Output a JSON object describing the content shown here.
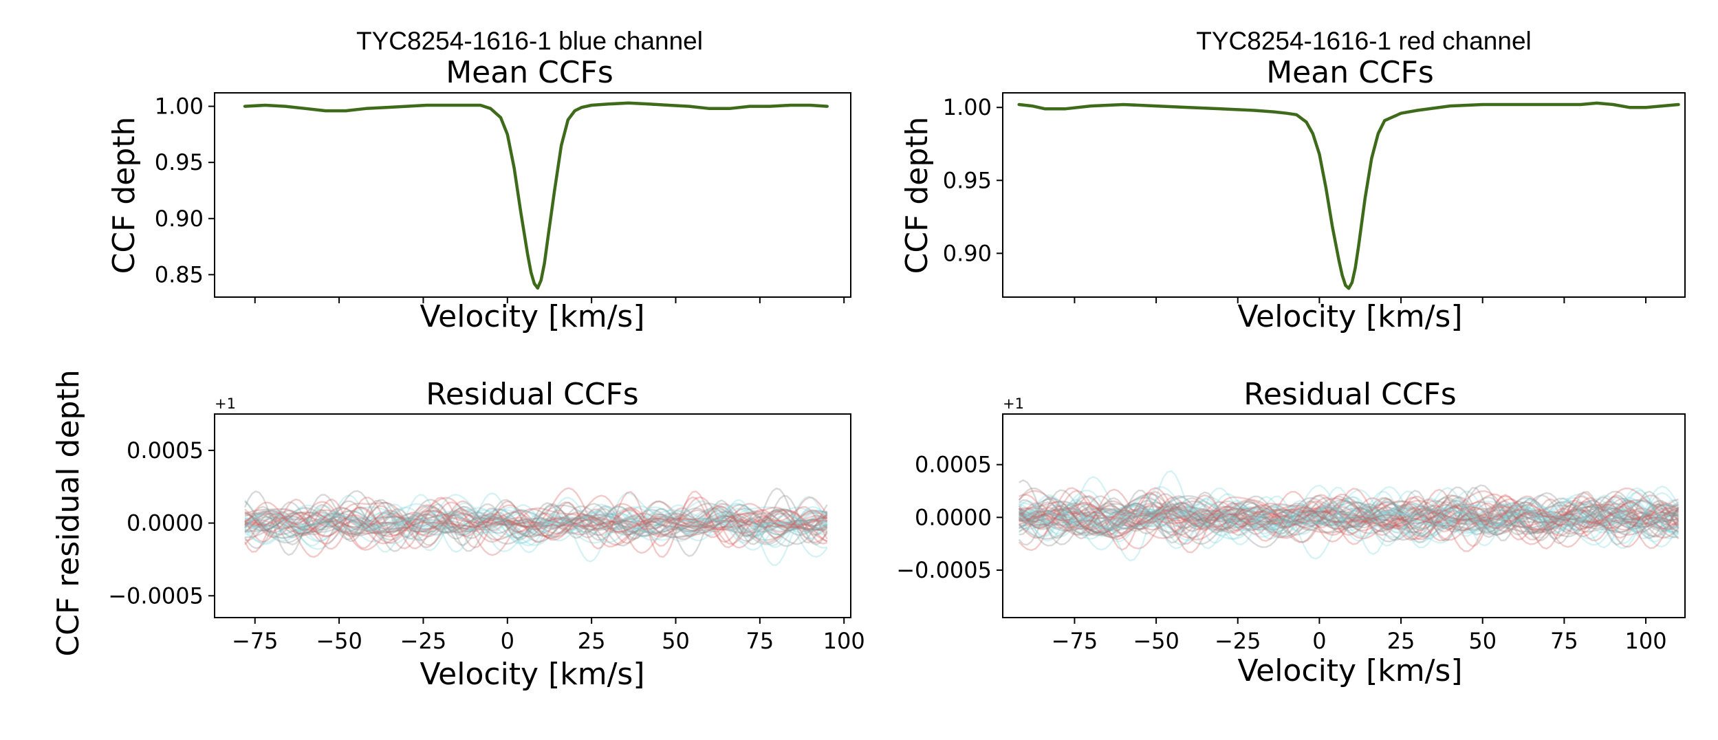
{
  "figure": {
    "colors": {
      "mean_line": "#3d6b1a",
      "blue_residuals": "#7fd8dc",
      "red_residuals": "#d65a5a",
      "gray_residuals": "#888888"
    }
  },
  "chart_data": [
    {
      "id": "blue_mean",
      "type": "line",
      "suptitle": "TYC8254-1616-1 blue channel",
      "title": "Mean CCFs",
      "xlabel": "Velocity [km/s]",
      "ylabel": "CCF depth",
      "xlim": [
        -87,
        102
      ],
      "ylim": [
        0.83,
        1.012
      ],
      "xticks": [
        -75,
        -50,
        -25,
        0,
        25,
        50,
        75,
        100
      ],
      "show_xticklabels": false,
      "yticks": [
        0.85,
        0.9,
        0.95,
        1.0
      ],
      "ytick_labels": [
        "0.85",
        "0.90",
        "0.95",
        "1.00"
      ],
      "series": [
        {
          "name": "mean CCF",
          "x": [
            -78,
            -72,
            -66,
            -60,
            -54,
            -48,
            -42,
            -36,
            -30,
            -24,
            -18,
            -12,
            -8,
            -5,
            -2,
            0,
            2,
            4,
            6,
            7,
            8,
            9,
            10,
            11,
            12,
            14,
            16,
            18,
            20,
            22,
            25,
            30,
            36,
            42,
            48,
            54,
            60,
            66,
            72,
            78,
            84,
            90,
            95
          ],
          "values": [
            1.0,
            1.001,
            1.0,
            0.998,
            0.996,
            0.996,
            0.998,
            0.999,
            1.0,
            1.001,
            1.001,
            1.001,
            1.001,
            0.998,
            0.99,
            0.975,
            0.945,
            0.905,
            0.868,
            0.852,
            0.842,
            0.838,
            0.845,
            0.86,
            0.882,
            0.925,
            0.965,
            0.988,
            0.996,
            0.999,
            1.001,
            1.002,
            1.003,
            1.002,
            1.001,
            1.0,
            0.998,
            0.998,
            1.0,
            1.0,
            1.001,
            1.001,
            1.0
          ]
        }
      ]
    },
    {
      "id": "red_mean",
      "type": "line",
      "suptitle": "TYC8254-1616-1 red channel",
      "title": "Mean CCFs",
      "xlabel": "Velocity [km/s]",
      "ylabel": "CCF depth",
      "xlim": [
        -97,
        112
      ],
      "ylim": [
        0.87,
        1.01
      ],
      "xticks": [
        -75,
        -50,
        -25,
        0,
        25,
        50,
        75,
        100
      ],
      "show_xticklabels": false,
      "yticks": [
        0.9,
        0.95,
        1.0
      ],
      "ytick_labels": [
        "0.90",
        "0.95",
        "1.00"
      ],
      "series": [
        {
          "name": "mean CCF",
          "x": [
            -92,
            -88,
            -84,
            -78,
            -70,
            -60,
            -50,
            -40,
            -30,
            -20,
            -14,
            -10,
            -7,
            -4,
            -2,
            0,
            2,
            4,
            6,
            7,
            8,
            9,
            10,
            11,
            12,
            14,
            16,
            18,
            20,
            25,
            30,
            40,
            50,
            60,
            70,
            80,
            85,
            90,
            95,
            100,
            105,
            110
          ],
          "values": [
            1.002,
            1.001,
            0.999,
            0.999,
            1.001,
            1.002,
            1.001,
            1.0,
            0.999,
            0.998,
            0.997,
            0.996,
            0.995,
            0.99,
            0.982,
            0.968,
            0.945,
            0.918,
            0.895,
            0.885,
            0.878,
            0.876,
            0.88,
            0.89,
            0.905,
            0.938,
            0.965,
            0.982,
            0.991,
            0.996,
            0.998,
            1.001,
            1.002,
            1.002,
            1.002,
            1.002,
            1.003,
            1.002,
            1.0,
            1.0,
            1.001,
            1.002
          ]
        }
      ]
    },
    {
      "id": "blue_resid",
      "type": "line",
      "title": "Residual CCFs",
      "xlabel": "Velocity [km/s]",
      "ylabel": "CCF residual depth",
      "offset_text": "+1",
      "xlim": [
        -87,
        102
      ],
      "ylim": [
        -0.00065,
        0.00075
      ],
      "xticks": [
        -75,
        -50,
        -25,
        0,
        25,
        50,
        75,
        100
      ],
      "xtick_labels": [
        "−75",
        "−50",
        "−25",
        "0",
        "25",
        "50",
        "75",
        "100"
      ],
      "yticks": [
        -0.0005,
        0.0,
        0.0005
      ],
      "ytick_labels": [
        "−0.0005",
        "0.0000",
        "0.0005"
      ],
      "x_start": -78,
      "x_end": 95,
      "n_curves": 48,
      "amplitude": 0.00011,
      "seed": 11,
      "series_colors": [
        "blue_residuals",
        "red_residuals",
        "gray_residuals"
      ]
    },
    {
      "id": "red_resid",
      "type": "line",
      "title": "Residual CCFs",
      "xlabel": "Velocity [km/s]",
      "offset_text": "+1",
      "xlim": [
        -97,
        112
      ],
      "ylim": [
        -0.00095,
        0.00098
      ],
      "xticks": [
        -75,
        -50,
        -25,
        0,
        25,
        50,
        75,
        100
      ],
      "xtick_labels": [
        "−75",
        "−50",
        "−25",
        "0",
        "25",
        "50",
        "75",
        "100"
      ],
      "yticks": [
        -0.0005,
        0.0,
        0.0005
      ],
      "ytick_labels": [
        "−0.0005",
        "0.0000",
        "0.0005"
      ],
      "x_start": -92,
      "x_end": 110,
      "n_curves": 64,
      "amplitude": 0.00015,
      "seed": 29,
      "series_colors": [
        "blue_residuals",
        "red_residuals",
        "gray_residuals"
      ]
    }
  ]
}
